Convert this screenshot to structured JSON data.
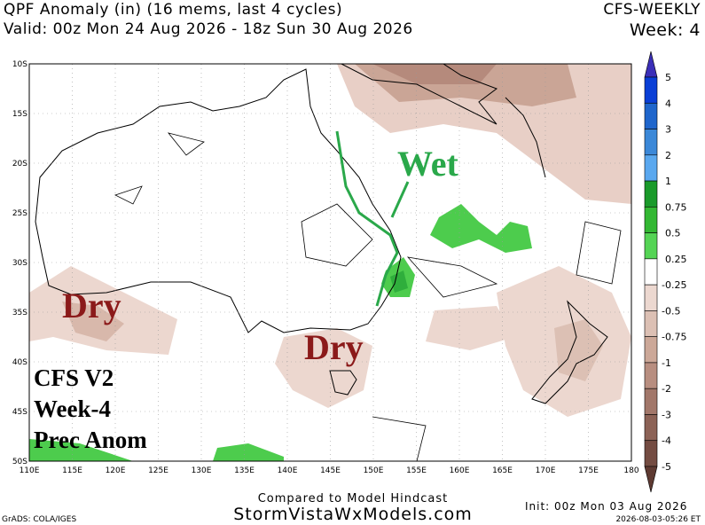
{
  "header": {
    "title": "QPF Anomaly (in) (16 mems, last 4 cycles)",
    "valid": "Valid: 00z Mon 24 Aug 2026 - 18z Sun 30 Aug 2026",
    "model": "CFS-WEEKLY",
    "week": "Week: 4"
  },
  "map": {
    "lat_labels": [
      "10S",
      "15S",
      "20S",
      "25S",
      "30S",
      "35S",
      "40S",
      "45S",
      "50S"
    ],
    "lon_labels": [
      "110E",
      "115E",
      "120E",
      "125E",
      "130E",
      "135E",
      "140E",
      "145E",
      "150E",
      "155E",
      "160E",
      "165E",
      "170E",
      "175E",
      "180"
    ],
    "annotations": [
      "Wet",
      "Dry",
      "Dry"
    ],
    "note": [
      "CFS V2",
      "Week-4",
      "Prec Anom"
    ]
  },
  "colorbar": {
    "labels": [
      "5",
      "4",
      "3",
      "2",
      "1",
      "0.75",
      "0.5",
      "0.25",
      "-0.25",
      "-0.5",
      "-0.75",
      "-1",
      "-2",
      "-3",
      "-4",
      "-5"
    ]
  },
  "footer": {
    "compared": "Compared to Model Hindcast",
    "site": "StormVistaWxModels.com",
    "credit": "GrADS: COLA/IGES",
    "init": "Init: 00z Mon 03 Aug 2026",
    "timestamp": "2026-08-03-05:26 ET"
  }
}
